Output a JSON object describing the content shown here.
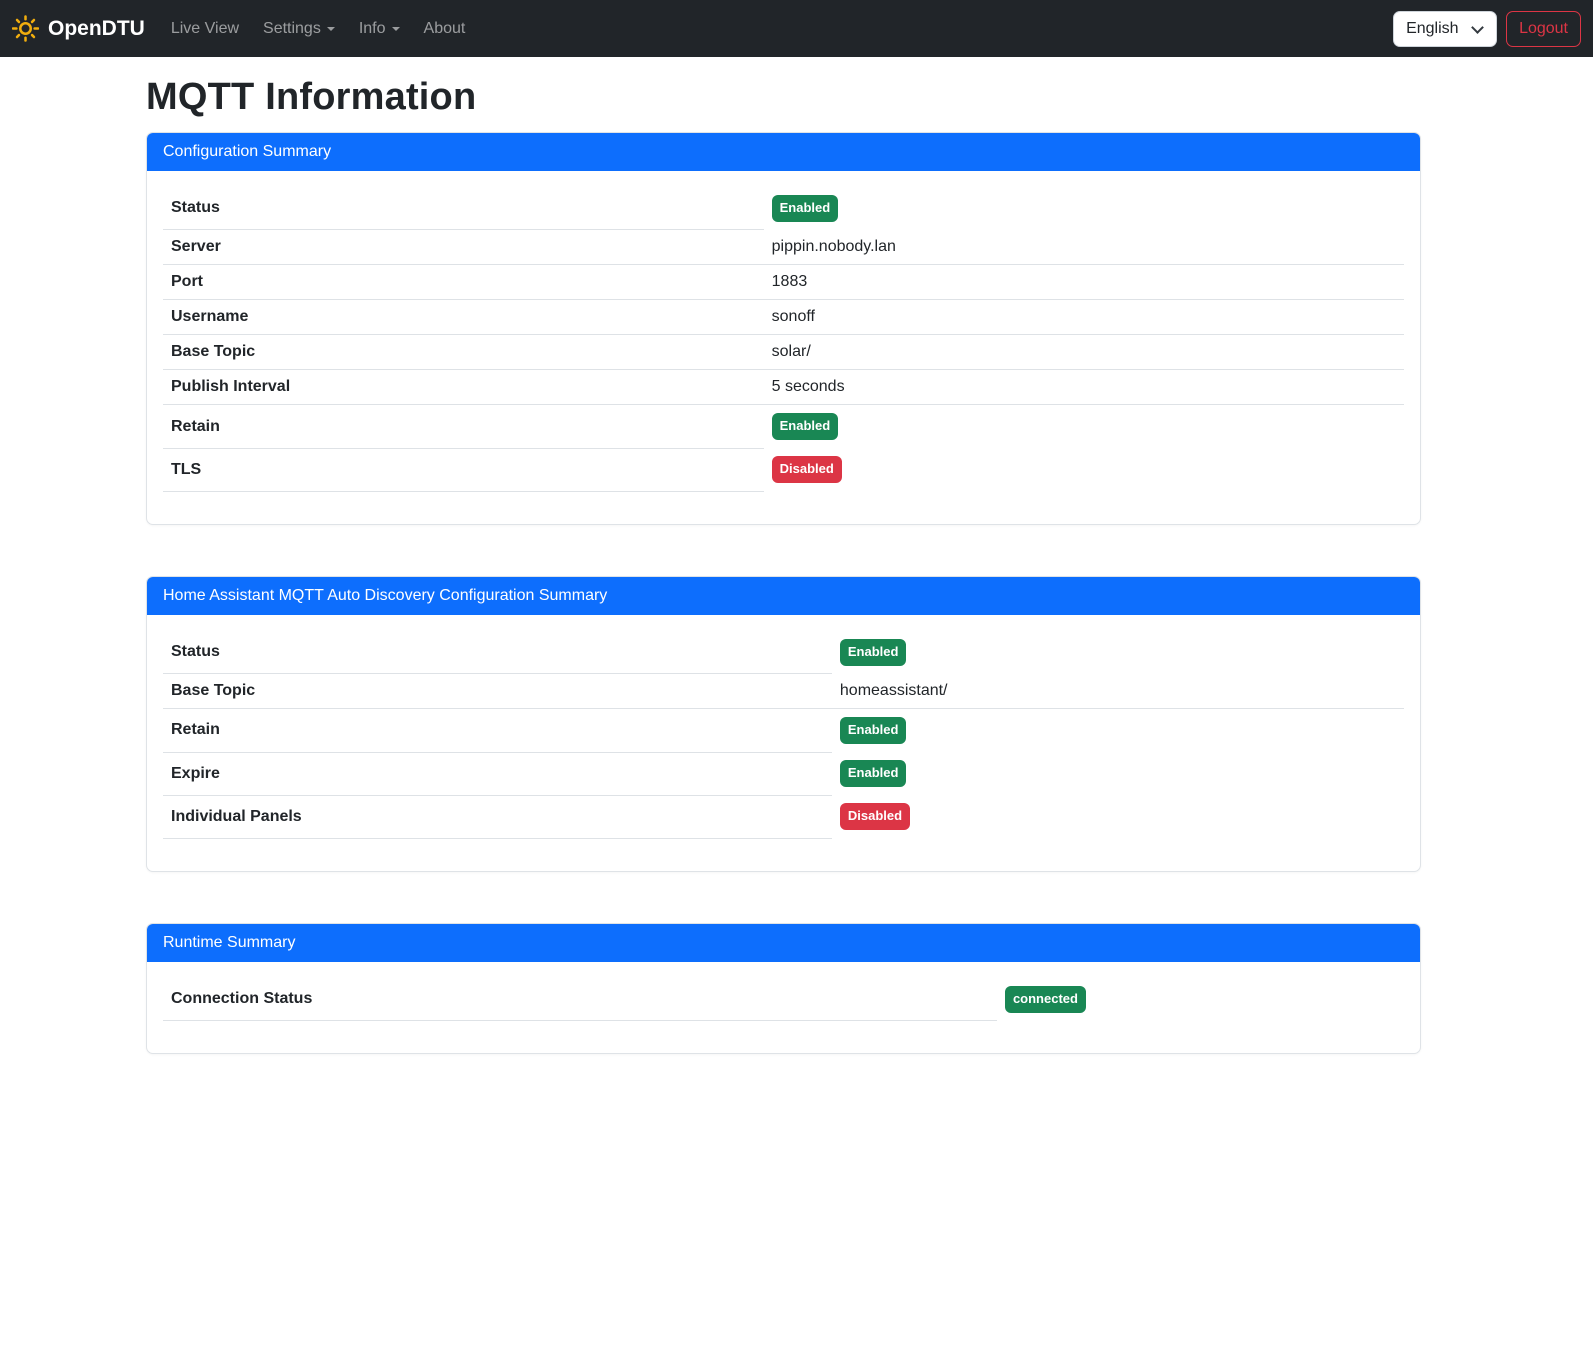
{
  "navbar": {
    "brand": "OpenDTU",
    "brand_icon": "sun-icon",
    "items": [
      {
        "label": "Live View",
        "has_caret": false
      },
      {
        "label": "Settings",
        "has_caret": true
      },
      {
        "label": "Info",
        "has_caret": true
      },
      {
        "label": "About",
        "has_caret": false
      }
    ],
    "language_select": {
      "value": "English",
      "options": [
        "English"
      ],
      "chevron_icon": "chevron-down-icon"
    },
    "logout_label": "Logout"
  },
  "page": {
    "title": "MQTT Information"
  },
  "cards": [
    {
      "header": "Configuration Summary",
      "label_col_width": "48.4%",
      "rows": [
        {
          "label": "Status",
          "type": "badge",
          "value": "Enabled",
          "variant": "success"
        },
        {
          "label": "Server",
          "type": "text",
          "value": "pippin.nobody.lan"
        },
        {
          "label": "Port",
          "type": "text",
          "value": "1883"
        },
        {
          "label": "Username",
          "type": "text",
          "value": "sonoff"
        },
        {
          "label": "Base Topic",
          "type": "text",
          "value": "solar/"
        },
        {
          "label": "Publish Interval",
          "type": "text",
          "value": "5 seconds"
        },
        {
          "label": "Retain",
          "type": "badge",
          "value": "Enabled",
          "variant": "success"
        },
        {
          "label": "TLS",
          "type": "badge",
          "value": "Disabled",
          "variant": "danger"
        }
      ]
    },
    {
      "header": "Home Assistant MQTT Auto Discovery Configuration Summary",
      "label_col_width": "53.9%",
      "rows": [
        {
          "label": "Status",
          "type": "badge",
          "value": "Enabled",
          "variant": "success"
        },
        {
          "label": "Base Topic",
          "type": "text",
          "value": "homeassistant/"
        },
        {
          "label": "Retain",
          "type": "badge",
          "value": "Enabled",
          "variant": "success"
        },
        {
          "label": "Expire",
          "type": "badge",
          "value": "Enabled",
          "variant": "success"
        },
        {
          "label": "Individual Panels",
          "type": "badge",
          "value": "Disabled",
          "variant": "danger"
        }
      ]
    },
    {
      "header": "Runtime Summary",
      "label_col_width": "67.2%",
      "rows": [
        {
          "label": "Connection Status",
          "type": "badge",
          "value": "connected",
          "variant": "success"
        }
      ]
    }
  ],
  "colors": {
    "primary": "#0d6efd",
    "success": "#198754",
    "danger": "#dc3545",
    "navbar_bg": "#212529",
    "table_border": "#dee2e6",
    "text": "#212529",
    "nav_link_muted": "rgba(255,255,255,0.55)",
    "brand_icon_color": "#f0ad0e"
  }
}
